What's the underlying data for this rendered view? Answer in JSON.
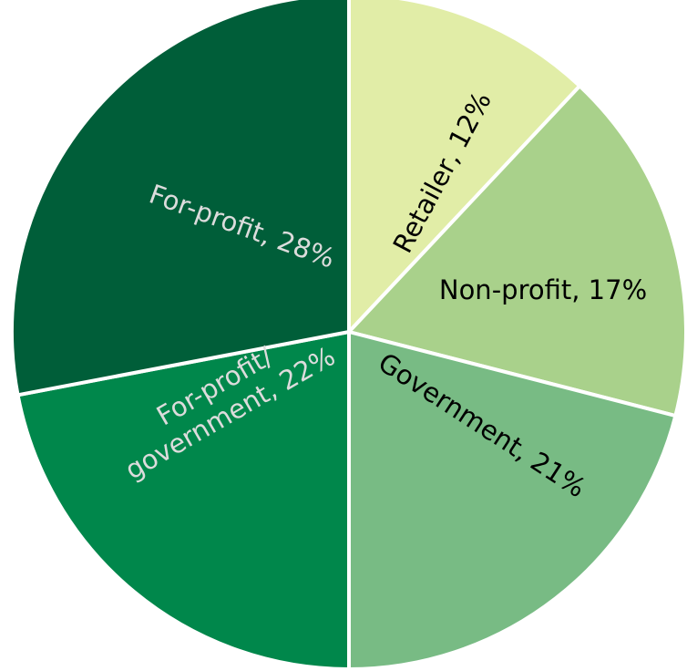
{
  "chart_data": {
    "type": "pie",
    "values": [
      12,
      17,
      21,
      22,
      28
    ],
    "value_labels": [
      [
        "Retailer, 12%"
      ],
      [
        "Non-profit, 17%"
      ],
      [
        "Government, 21%"
      ],
      [
        "For-profit/",
        "government, 22%"
      ],
      [
        "For-profit, 28%"
      ]
    ],
    "colors": [
      "#e1eda7",
      "#a9d18b",
      "#78bb84",
      "#00874b",
      "#005e39"
    ],
    "start_angle": 0,
    "direction": "clockwise"
  }
}
